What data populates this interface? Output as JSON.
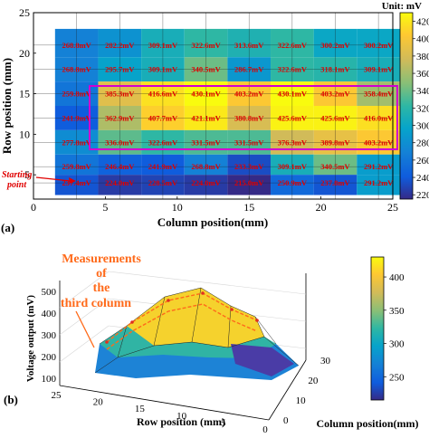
{
  "panel_a": {
    "label": "(a)",
    "unit_label": "Unit: mV",
    "starting_point_label": [
      "Starting",
      "point"
    ]
  },
  "panel_b": {
    "label": "(b)",
    "annotation": [
      "Measurements",
      "of",
      "the",
      "third column"
    ]
  },
  "colors": {
    "highlight_box": "#d000d0",
    "cell_labels": "#e00000",
    "annotation": "#ff6a1a",
    "mesh_points": "#e03020"
  },
  "chart_data": [
    {
      "type": "heatmap",
      "title": "",
      "xlabel": "Column position(mm)",
      "ylabel": "Row position (mm)",
      "xlim": [
        0,
        25
      ],
      "ylim": [
        2,
        25
      ],
      "xticks": [
        "0",
        "5",
        "10",
        "15",
        "20",
        "25"
      ],
      "yticks": [
        "5",
        "10",
        "15",
        "20",
        "25"
      ],
      "colorbar": {
        "label": "Unit: mV",
        "range": [
          215,
          430
        ],
        "ticks": [
          "220",
          "240",
          "260",
          "280",
          "300",
          "320",
          "340",
          "360",
          "380",
          "400",
          "420"
        ]
      },
      "x": [
        3,
        6,
        9,
        12,
        15,
        18,
        21,
        24
      ],
      "y": [
        4,
        6,
        9,
        12,
        15,
        18,
        21
      ],
      "rows": [
        {
          "y": 21,
          "labels": [
            "268.8mV",
            "282.2mV",
            "309.1mV",
            "322.6mV",
            "313.6mV",
            "322.6mV",
            "300.2mV",
            "300.2mV"
          ],
          "values": [
            268.8,
            282.2,
            309.1,
            322.6,
            313.6,
            322.6,
            300.2,
            300.2
          ]
        },
        {
          "y": 18,
          "labels": [
            "268.8mV",
            "295.7mV",
            "309.1mV",
            "340.5mV",
            "286.7mV",
            "322.6mV",
            "318.1mV",
            "309.1mV"
          ],
          "values": [
            268.8,
            295.7,
            309.1,
            340.5,
            286.7,
            322.6,
            318.1,
            309.1
          ]
        },
        {
          "y": 15,
          "labels": [
            "259.8mV",
            "385.3mV",
            "416.6mV",
            "430.1mV",
            "403.2mV",
            "430.1mV",
            "403.2mV",
            "358.4mV"
          ],
          "values": [
            259.8,
            385.3,
            416.6,
            430.1,
            403.2,
            430.1,
            403.2,
            358.4
          ]
        },
        {
          "y": 12,
          "labels": [
            "241.9mV",
            "362.9mV",
            "407.7mV",
            "421.1mV",
            "380.8mV",
            "425.6mV",
            "425.6mV",
            "416.0mV"
          ],
          "values": [
            241.9,
            362.9,
            407.7,
            421.1,
            380.8,
            425.6,
            425.6,
            416.0
          ]
        },
        {
          "y": 9,
          "labels": [
            "277.8mV",
            "336.0mV",
            "322.6mV",
            "331.5mV",
            "331.5mV",
            "376.3mV",
            "389.8mV",
            "403.2mV"
          ],
          "values": [
            277.8,
            336.0,
            322.6,
            331.5,
            331.5,
            376.3,
            389.8,
            403.2
          ]
        },
        {
          "y": 6,
          "labels": [
            "259.8mV",
            "246.4mV",
            "241.9mV",
            "268.8mV",
            "233.3mV",
            "309.1mV",
            "340.5mV",
            "291.2mV"
          ],
          "values": [
            259.8,
            246.4,
            241.9,
            268.8,
            233.3,
            309.1,
            340.5,
            291.2
          ]
        },
        {
          "y": 4,
          "labels": [
            "237.4mV",
            "224.0mV",
            "228.5mV",
            "224.0mV",
            "215.0mV",
            "250.9mV",
            "237.8mV",
            "291.2mV"
          ],
          "values": [
            237.4,
            224.0,
            228.5,
            224.0,
            215.0,
            250.9,
            237.8,
            291.2
          ]
        }
      ]
    },
    {
      "type": "surface",
      "title": "",
      "xlabel": "Row position (mm)",
      "ylabel": "Column position(mm)",
      "zlabel": "Voltage output (mV)",
      "row_ticks": [
        "25",
        "20",
        "15",
        "10",
        "5",
        "0"
      ],
      "column_ticks": [
        "0",
        "10",
        "20",
        "30"
      ],
      "z_ticks": [
        "100",
        "200",
        "300",
        "400",
        "500"
      ],
      "colorbar": {
        "range": [
          215,
          430
        ],
        "ticks": [
          "250",
          "300",
          "350",
          "400"
        ]
      }
    }
  ]
}
